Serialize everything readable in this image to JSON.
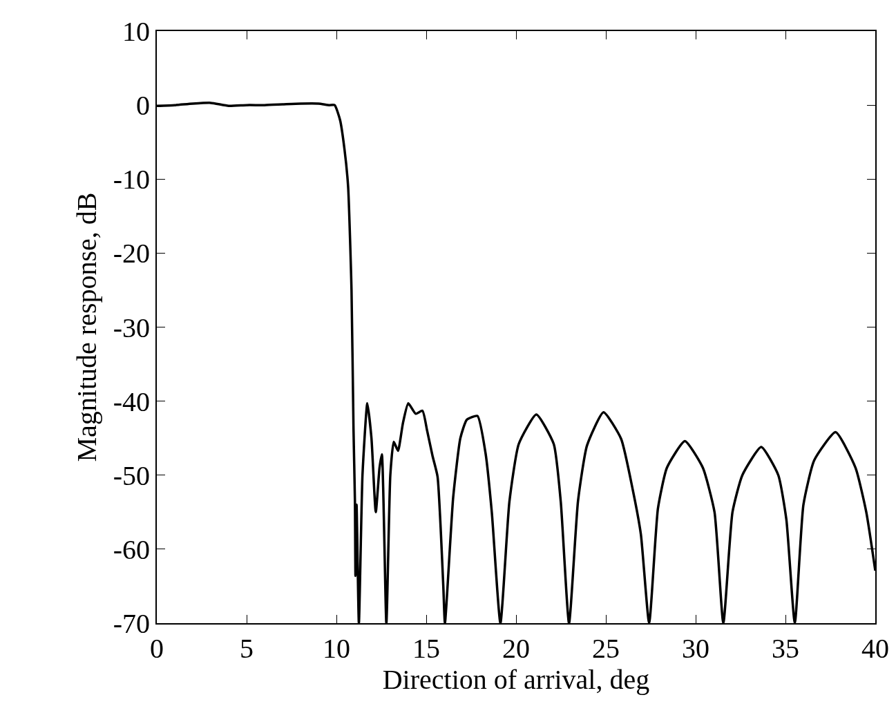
{
  "chart_data": {
    "type": "line",
    "xlabel": "Direction of arrival, deg",
    "ylabel": "Magnitude response, dB",
    "xlim": [
      0,
      40
    ],
    "ylim": [
      -70,
      10
    ],
    "xticks": [
      0,
      5,
      10,
      15,
      20,
      25,
      30,
      35,
      40
    ],
    "yticks": [
      10,
      0,
      -10,
      -20,
      -30,
      -40,
      -50,
      -60,
      -70
    ],
    "grid": false,
    "marker": "none",
    "line_style": "solid",
    "series": [
      {
        "color": "#000000",
        "x": [
          0,
          1,
          2,
          3,
          4,
          5,
          6,
          7,
          8,
          9,
          9.6,
          9.9,
          10.2,
          10.45,
          10.65,
          10.84,
          10.95,
          11.03,
          11.06,
          11.12,
          11.25,
          11.45,
          11.72,
          11.95,
          12.19,
          12.4,
          12.53,
          12.78,
          13.0,
          13.19,
          13.43,
          13.7,
          14.0,
          14.41,
          14.79,
          15.05,
          15.35,
          15.63,
          15.95,
          16.04,
          16.5,
          16.9,
          17.26,
          17.85,
          18.3,
          18.65,
          19.13,
          19.63,
          20.15,
          21.13,
          22.1,
          22.49,
          22.95,
          23.45,
          23.95,
          24.87,
          25.85,
          26.5,
          26.95,
          27.41,
          27.9,
          28.4,
          29.4,
          30.4,
          31.05,
          31.54,
          32.05,
          32.6,
          33.65,
          34.6,
          35.05,
          35.52,
          36.0,
          36.6,
          37.79,
          38.9,
          39.5,
          40
        ],
        "values": [
          -0.1,
          0,
          0.2,
          0.3,
          -0.1,
          0,
          0,
          0.1,
          0.2,
          0.2,
          0,
          0,
          -2,
          -6,
          -11,
          -25,
          -43.7,
          -53.5,
          -63.6,
          -54,
          -70,
          -50,
          -40.3,
          -45,
          -55,
          -49,
          -47.2,
          -70,
          -50,
          -45.5,
          -46.7,
          -43,
          -40.3,
          -41.7,
          -41.3,
          -44,
          -47.4,
          -50.2,
          -65,
          -70,
          -53,
          -45,
          -42.5,
          -42,
          -47,
          -55,
          -70,
          -53.6,
          -45.8,
          -41.8,
          -45.8,
          -53.6,
          -70,
          -53.5,
          -46,
          -41.5,
          -45.1,
          -52,
          -58,
          -70,
          -54.5,
          -49,
          -45.4,
          -49,
          -55,
          -70,
          -55,
          -50,
          -46.2,
          -50,
          -56,
          -70,
          -54,
          -48,
          -44.2,
          -49,
          -55,
          -62.9
        ]
      }
    ]
  }
}
